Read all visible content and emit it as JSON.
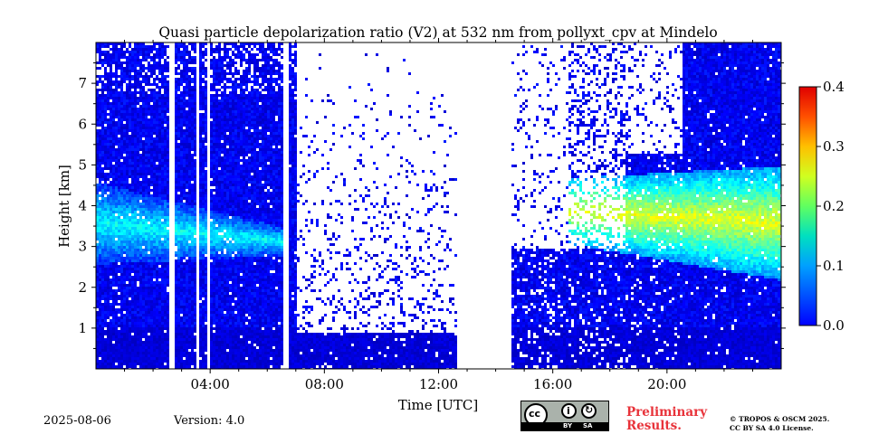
{
  "chart_data": {
    "type": "heatmap",
    "title": "Quasi particle depolarization ratio (V2) at 532 nm from pollyxt_cpv at Mindelo",
    "xlabel": "Time [UTC]",
    "ylabel": "Height [km]",
    "x_ticks": [
      "04:00",
      "08:00",
      "12:00",
      "16:00",
      "20:00"
    ],
    "x_tick_hours": [
      4,
      8,
      12,
      16,
      20
    ],
    "xlim_hours": [
      0,
      24
    ],
    "y_ticks": [
      1,
      2,
      3,
      4,
      5,
      6,
      7
    ],
    "ylim": [
      0,
      8
    ],
    "colorbar": {
      "ticks": [
        "0.0",
        "0.1",
        "0.2",
        "0.3",
        "0.4"
      ],
      "values": [
        0.0,
        0.1,
        0.2,
        0.3,
        0.4
      ],
      "range": [
        0.0,
        0.4
      ],
      "colormap": "jet"
    },
    "no_data_hours": [
      [
        2.55,
        2.75
      ],
      [
        3.45,
        3.55
      ],
      [
        3.85,
        3.95
      ],
      [
        6.55,
        6.75
      ],
      [
        12.6,
        14.5
      ]
    ],
    "layers": [
      {
        "start_hour": 0,
        "end_hour": 6.5,
        "base_km_start": 2.6,
        "base_km_end": 2.8,
        "top_km_start": 4.6,
        "top_km_end": 3.5,
        "value": 0.15
      },
      {
        "start_hour": 16.5,
        "end_hour": 24,
        "base_km_start": 3.1,
        "base_km_end": 2.2,
        "top_km_start": 4.7,
        "top_km_end": 5.0,
        "value": 0.24
      }
    ]
  },
  "footer": {
    "date": "2025-08-06",
    "version": "Version: 4.0",
    "preliminary_line1": "Preliminary",
    "preliminary_line2": "Results.",
    "copyright_line1": "© TROPOS & OSCM 2025.",
    "copyright_line2": "CC BY SA 4.0 License.",
    "license_badge": {
      "icon": "cc-by-sa-icon",
      "by": "BY",
      "sa": "SA"
    }
  }
}
